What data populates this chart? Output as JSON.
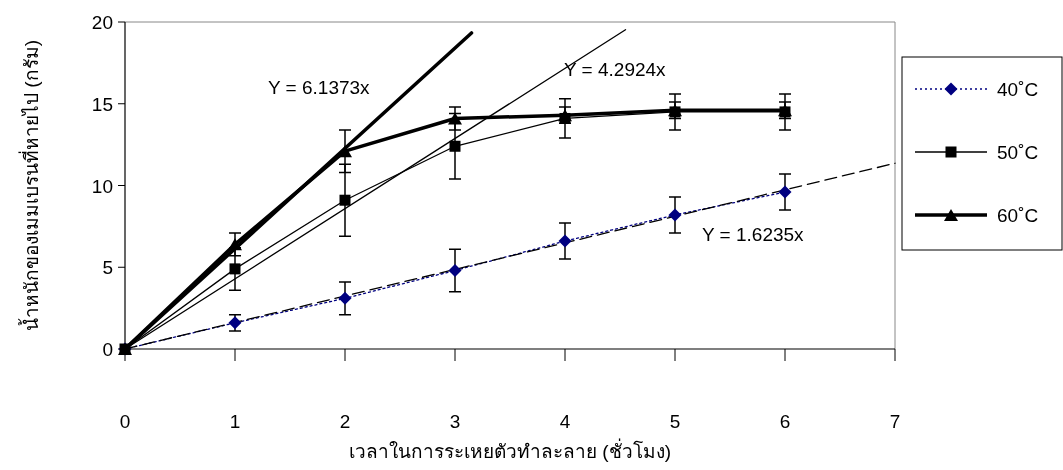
{
  "chart_data": {
    "type": "line",
    "xlabel": "เวลาในการระเหยตัวทำละลาย (ชั่วโมง)",
    "ylabel": "น้ำหนักของเมมเบรนที่หายไป (กรัม)",
    "x": [
      0,
      1,
      2,
      3,
      4,
      5,
      6
    ],
    "xlim": [
      0,
      7
    ],
    "xticks": [
      0,
      1,
      2,
      3,
      4,
      5,
      6,
      7
    ],
    "ylim": [
      0,
      20
    ],
    "yticks": [
      0,
      5,
      10,
      15,
      20
    ],
    "grid": false,
    "legend": "right",
    "series": [
      {
        "name": "40˚C",
        "color": "#000080",
        "marker": "diamond",
        "line_style": "dotted",
        "values": [
          0,
          1.6,
          3.1,
          4.8,
          6.6,
          8.2,
          9.6
        ],
        "errors": [
          null,
          0.5,
          1.0,
          1.3,
          1.1,
          1.1,
          1.1
        ]
      },
      {
        "name": "50˚C",
        "color": "#000000",
        "marker": "square",
        "line_style": "solid",
        "values": [
          0,
          4.9,
          9.1,
          12.4,
          14.1,
          14.5,
          14.5
        ],
        "errors": [
          null,
          1.3,
          2.2,
          2.0,
          1.2,
          1.1,
          1.1
        ]
      },
      {
        "name": "60˚C",
        "color": "#000000",
        "marker": "triangle",
        "line_style": "solid",
        "values": [
          0,
          6.4,
          12.1,
          14.1,
          14.3,
          14.6,
          14.6
        ],
        "errors": [
          null,
          0.7,
          1.3,
          0.7,
          0.5,
          0.5,
          0.5
        ]
      },
      {
        "type": "line",
        "color": "#000000",
        "marker": "none",
        "line_style": "solid",
        "x": [
          0,
          3.15
        ],
        "values": [
          0,
          19.33
        ]
      },
      {
        "type": "line",
        "color": "#000000",
        "marker": "none",
        "line_style": "solid",
        "x": [
          0,
          4.55
        ],
        "values": [
          0,
          19.53
        ]
      },
      {
        "type": "line",
        "color": "#000000",
        "marker": "none",
        "line_style": "dashed",
        "x": [
          0,
          7
        ],
        "values": [
          0,
          11.36
        ]
      }
    ],
    "annotations": [
      "Y = 6.1373x",
      "Y = 4.2924x",
      "Y = 1.6235x"
    ]
  }
}
